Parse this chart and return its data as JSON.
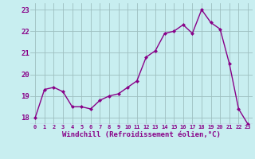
{
  "x": [
    0,
    1,
    2,
    3,
    4,
    5,
    6,
    7,
    8,
    9,
    10,
    11,
    12,
    13,
    14,
    15,
    16,
    17,
    18,
    19,
    20,
    21,
    22,
    23
  ],
  "y": [
    18.0,
    19.3,
    19.4,
    19.2,
    18.5,
    18.5,
    18.4,
    18.8,
    19.0,
    19.1,
    19.4,
    19.7,
    20.8,
    21.1,
    21.9,
    22.0,
    22.3,
    21.9,
    23.0,
    22.4,
    22.1,
    20.5,
    18.4,
    17.7
  ],
  "line_color": "#880088",
  "marker": "D",
  "marker_size": 2.0,
  "bg_color": "#c8eef0",
  "grid_color": "#9dbfbf",
  "xlabel": "Windchill (Refroidissement éolien,°C)",
  "xlabel_color": "#880088",
  "tick_color": "#880088",
  "ylim": [
    17.7,
    23.3
  ],
  "yticks": [
    18,
    19,
    20,
    21,
    22,
    23
  ],
  "xlim": [
    -0.5,
    23.5
  ],
  "linewidth": 1.0
}
